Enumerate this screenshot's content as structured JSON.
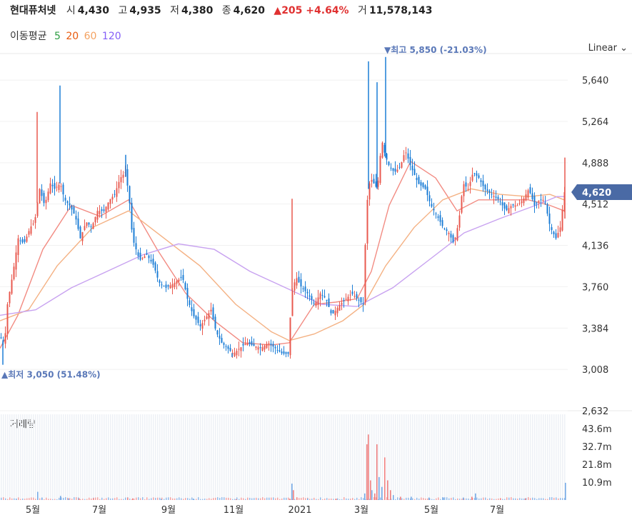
{
  "header": {
    "name": "현대퓨처넷",
    "open_label": "시",
    "open": "4,430",
    "high_label": "고",
    "high": "4,935",
    "low_label": "저",
    "low": "4,380",
    "close_label": "종",
    "close": "4,620",
    "change": "▲205 +4.64%",
    "volume_label": "거",
    "volume": "11,578,143"
  },
  "moving_average": {
    "label": "이동평균",
    "periods": [
      {
        "label": "5",
        "color": "#2f9e44"
      },
      {
        "label": "20",
        "color": "#e8590c"
      },
      {
        "label": "60",
        "color": "#f4a261"
      },
      {
        "label": "120",
        "color": "#845ef7"
      }
    ]
  },
  "scale_select": "Linear ⌄",
  "chart_data": {
    "type": "candlestick",
    "y_ticks": [
      "5,640",
      "5,264",
      "4,888",
      "4,512",
      "4,136",
      "3,760",
      "3,384",
      "3,008",
      "2,632"
    ],
    "y_range": [
      2632,
      5816
    ],
    "x_ticks": [
      "5월",
      "7월",
      "9월",
      "11월",
      "2021",
      "3월",
      "5월",
      "7월"
    ],
    "current_price": "4,620",
    "max_annotation": "최고 5,850 (-21.03%)",
    "min_annotation": "최저 3,050 (51.48%)",
    "max_price": 5850,
    "min_price": 3050,
    "volume_label": "거래량",
    "volume_ticks": [
      "43.6m",
      "32.7m",
      "21.8m",
      "10.9m"
    ],
    "volume_range_m": [
      0,
      54.5
    ],
    "close_path": [
      [
        0,
        3300
      ],
      [
        6,
        3250
      ],
      [
        10,
        3600
      ],
      [
        18,
        3900
      ],
      [
        25,
        4200
      ],
      [
        33,
        4150
      ],
      [
        42,
        4300
      ],
      [
        48,
        4350
      ],
      [
        55,
        4650
      ],
      [
        62,
        4500
      ],
      [
        70,
        4700
      ],
      [
        76,
        4650
      ],
      [
        84,
        4700
      ],
      [
        90,
        4550
      ],
      [
        97,
        4500
      ],
      [
        105,
        4400
      ],
      [
        112,
        4200
      ],
      [
        120,
        4350
      ],
      [
        128,
        4300
      ],
      [
        136,
        4450
      ],
      [
        145,
        4450
      ],
      [
        153,
        4550
      ],
      [
        160,
        4600
      ],
      [
        168,
        4750
      ],
      [
        175,
        4800
      ],
      [
        180,
        4600
      ],
      [
        185,
        4200
      ],
      [
        195,
        4000
      ],
      [
        205,
        4050
      ],
      [
        215,
        3950
      ],
      [
        222,
        3800
      ],
      [
        232,
        3750
      ],
      [
        245,
        3800
      ],
      [
        255,
        3850
      ],
      [
        262,
        3650
      ],
      [
        270,
        3500
      ],
      [
        280,
        3400
      ],
      [
        290,
        3500
      ],
      [
        295,
        3550
      ],
      [
        302,
        3350
      ],
      [
        310,
        3250
      ],
      [
        318,
        3200
      ],
      [
        326,
        3150
      ],
      [
        335,
        3200
      ],
      [
        345,
        3250
      ],
      [
        355,
        3220
      ],
      [
        365,
        3200
      ],
      [
        375,
        3250
      ],
      [
        385,
        3200
      ],
      [
        395,
        3150
      ],
      [
        403,
        3150
      ],
      [
        408,
        3700
      ],
      [
        414,
        3850
      ],
      [
        422,
        3750
      ],
      [
        430,
        3700
      ],
      [
        440,
        3600
      ],
      [
        448,
        3700
      ],
      [
        456,
        3650
      ],
      [
        464,
        3500
      ],
      [
        470,
        3550
      ],
      [
        476,
        3600
      ],
      [
        484,
        3650
      ],
      [
        492,
        3700
      ],
      [
        500,
        3650
      ],
      [
        508,
        3600
      ],
      [
        513,
        4500
      ],
      [
        518,
        4750
      ],
      [
        523,
        4700
      ],
      [
        528,
        4650
      ],
      [
        534,
        5100
      ],
      [
        539,
        4950
      ],
      [
        545,
        4850
      ],
      [
        552,
        4800
      ],
      [
        560,
        4850
      ],
      [
        567,
        5000
      ],
      [
        575,
        4850
      ],
      [
        585,
        4700
      ],
      [
        595,
        4650
      ],
      [
        603,
        4500
      ],
      [
        612,
        4400
      ],
      [
        620,
        4300
      ],
      [
        628,
        4250
      ],
      [
        635,
        4150
      ],
      [
        642,
        4350
      ],
      [
        648,
        4700
      ],
      [
        655,
        4650
      ],
      [
        662,
        4800
      ],
      [
        670,
        4750
      ],
      [
        678,
        4650
      ],
      [
        688,
        4600
      ],
      [
        698,
        4550
      ],
      [
        708,
        4450
      ],
      [
        716,
        4500
      ],
      [
        724,
        4500
      ],
      [
        732,
        4550
      ],
      [
        740,
        4650
      ],
      [
        748,
        4500
      ],
      [
        755,
        4550
      ],
      [
        762,
        4550
      ],
      [
        770,
        4300
      ],
      [
        778,
        4200
      ],
      [
        784,
        4300
      ],
      [
        790,
        4620
      ]
    ],
    "ma_paths": [
      {
        "name": "20",
        "color": "#f28b82",
        "points": [
          [
            0,
            3200
          ],
          [
            25,
            3500
          ],
          [
            60,
            4100
          ],
          [
            100,
            4500
          ],
          [
            140,
            4400
          ],
          [
            180,
            4550
          ],
          [
            220,
            4100
          ],
          [
            260,
            3700
          ],
          [
            300,
            3450
          ],
          [
            340,
            3250
          ],
          [
            380,
            3230
          ],
          [
            405,
            3250
          ],
          [
            440,
            3600
          ],
          [
            470,
            3620
          ],
          [
            500,
            3650
          ],
          [
            520,
            3900
          ],
          [
            545,
            4500
          ],
          [
            575,
            4900
          ],
          [
            610,
            4750
          ],
          [
            640,
            4450
          ],
          [
            670,
            4550
          ],
          [
            700,
            4550
          ],
          [
            740,
            4550
          ],
          [
            770,
            4500
          ],
          [
            790,
            4450
          ]
        ]
      },
      {
        "name": "60",
        "color": "#f4b183",
        "points": [
          [
            0,
            3450
          ],
          [
            40,
            3550
          ],
          [
            80,
            3950
          ],
          [
            130,
            4300
          ],
          [
            180,
            4450
          ],
          [
            230,
            4200
          ],
          [
            280,
            3950
          ],
          [
            330,
            3600
          ],
          [
            380,
            3350
          ],
          [
            405,
            3270
          ],
          [
            440,
            3330
          ],
          [
            480,
            3450
          ],
          [
            510,
            3600
          ],
          [
            540,
            3950
          ],
          [
            580,
            4300
          ],
          [
            620,
            4550
          ],
          [
            660,
            4650
          ],
          [
            700,
            4600
          ],
          [
            740,
            4580
          ],
          [
            770,
            4600
          ],
          [
            790,
            4550
          ]
        ]
      },
      {
        "name": "120",
        "color": "#c8a2f0",
        "points": [
          [
            0,
            3500
          ],
          [
            50,
            3550
          ],
          [
            100,
            3750
          ],
          [
            150,
            3900
          ],
          [
            200,
            4050
          ],
          [
            250,
            4150
          ],
          [
            300,
            4100
          ],
          [
            350,
            3900
          ],
          [
            400,
            3750
          ],
          [
            450,
            3600
          ],
          [
            500,
            3580
          ],
          [
            550,
            3750
          ],
          [
            600,
            4000
          ],
          [
            650,
            4250
          ],
          [
            700,
            4380
          ],
          [
            750,
            4500
          ],
          [
            780,
            4580
          ],
          [
            790,
            4580
          ]
        ]
      }
    ],
    "volume_spikes_m": [
      [
        22,
        0.8
      ],
      [
        52,
        5.0
      ],
      [
        58,
        1.5
      ],
      [
        84,
        2.5
      ],
      [
        95,
        1.0
      ],
      [
        110,
        1.0
      ],
      [
        130,
        1.2
      ],
      [
        178,
        1.5
      ],
      [
        185,
        1.0
      ],
      [
        225,
        0.6
      ],
      [
        270,
        0.8
      ],
      [
        330,
        0.5
      ],
      [
        405,
        0.8
      ],
      [
        408,
        10.0
      ],
      [
        410,
        6.0
      ],
      [
        415,
        1.5
      ],
      [
        430,
        1.0
      ],
      [
        470,
        0.8
      ],
      [
        510,
        4.0
      ],
      [
        513,
        34.0
      ],
      [
        515,
        40.0
      ],
      [
        518,
        12.0
      ],
      [
        520,
        6.0
      ],
      [
        524,
        4.0
      ],
      [
        527,
        34.0
      ],
      [
        530,
        14.0
      ],
      [
        534,
        8.0
      ],
      [
        538,
        26.0
      ],
      [
        542,
        12.0
      ],
      [
        546,
        6.0
      ],
      [
        550,
        3.0
      ],
      [
        560,
        2.0
      ],
      [
        575,
        2.0
      ],
      [
        600,
        1.5
      ],
      [
        620,
        1.5
      ],
      [
        648,
        1.5
      ],
      [
        660,
        2.0
      ],
      [
        665,
        4.0
      ],
      [
        700,
        1.0
      ],
      [
        735,
        1.0
      ],
      [
        791,
        10.5
      ]
    ],
    "volume_tall_bars": [
      513,
      515,
      527,
      538,
      791
    ]
  }
}
